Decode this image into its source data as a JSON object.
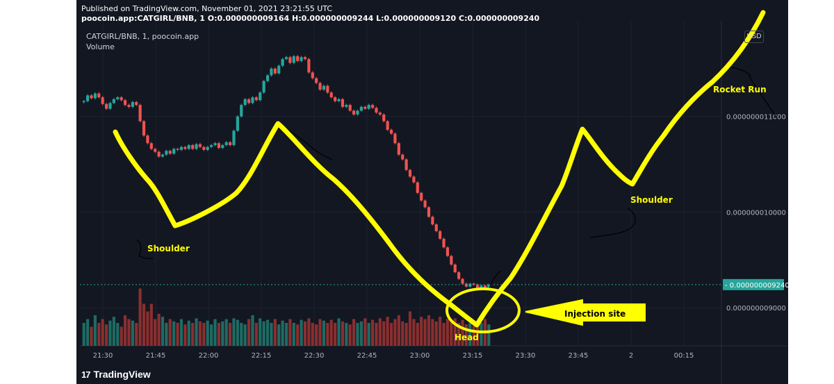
{
  "header": {
    "published": "Published on TradingView.com, November 01, 2021 23:21:55 UTC",
    "ohlc": "poocoin.app:CATGIRL/BNB, 1  O:0.000000009164  H:0.000000009244  L:0.000000009120  C:0.000000009240",
    "symbol": "CATGIRL/BNB, 1, poocoin.app",
    "volume_label": "Volume",
    "currency": "USD"
  },
  "footer": {
    "logo_text": "TradingView",
    "logo_glyph": "17"
  },
  "chart_data": {
    "type": "candlestick",
    "x_ticks": [
      "21:30",
      "21:45",
      "22:00",
      "22:15",
      "22:30",
      "22:45",
      "23:00",
      "23:15",
      "23:30",
      "23:45",
      "2",
      "00:15"
    ],
    "y_ticks": [
      "0.000000011000",
      "0.000000010000",
      "0.000000009000"
    ],
    "last_price": "0.000000009240",
    "ylim": [
      8.6e-09,
      1.2e-08
    ],
    "price_path": [
      1.116e-08,
      1.122e-08,
      1.119e-08,
      1.124e-08,
      1.12e-08,
      1.113e-08,
      1.108e-08,
      1.114e-08,
      1.118e-08,
      1.12e-08,
      1.117e-08,
      1.112e-08,
      1.11e-08,
      1.115e-08,
      1.112e-08,
      1.095e-08,
      1.08e-08,
      1.072e-08,
      1.066e-08,
      1.063e-08,
      1.058e-08,
      1.06e-08,
      1.064e-08,
      1.061e-08,
      1.066e-08,
      1.065e-08,
      1.068e-08,
      1.066e-08,
      1.07e-08,
      1.066e-08,
      1.071e-08,
      1.068e-08,
      1.065e-08,
      1.068e-08,
      1.07e-08,
      1.072e-08,
      1.067e-08,
      1.07e-08,
      1.073e-08,
      1.07e-08,
      1.085e-08,
      1.1e-08,
      1.112e-08,
      1.118e-08,
      1.114e-08,
      1.12e-08,
      1.117e-08,
      1.125e-08,
      1.137e-08,
      1.143e-08,
      1.15e-08,
      1.145e-08,
      1.153e-08,
      1.16e-08,
      1.162e-08,
      1.156e-08,
      1.163e-08,
      1.158e-08,
      1.162e-08,
      1.16e-08,
      1.146e-08,
      1.14e-08,
      1.135e-08,
      1.128e-08,
      1.132e-08,
      1.125e-08,
      1.12e-08,
      1.116e-08,
      1.118e-08,
      1.11e-08,
      1.112e-08,
      1.106e-08,
      1.102e-08,
      1.106e-08,
      1.11e-08,
      1.108e-08,
      1.112e-08,
      1.109e-08,
      1.104e-08,
      1.102e-08,
      1.095e-08,
      1.086e-08,
      1.082e-08,
      1.072e-08,
      1.06e-08,
      1.055e-08,
      1.044e-08,
      1.037e-08,
      1.031e-08,
      1.02e-08,
      1.012e-08,
      1.005e-08,
      9.95e-09,
      9.87e-09,
      9.8e-09,
      9.72e-09,
      9.63e-09,
      9.54e-09,
      9.45e-09,
      9.37e-09,
      9.3e-09,
      9.25e-09,
      9.22e-09,
      9.25e-09,
      9.24e-09,
      9.2e-09,
      9.23e-09,
      9.21e-09,
      9.24e-09
    ],
    "volume": [
      0.3,
      0.35,
      0.25,
      0.4,
      0.3,
      0.35,
      0.28,
      0.33,
      0.38,
      0.3,
      0.25,
      0.4,
      0.35,
      0.33,
      0.3,
      0.75,
      0.55,
      0.45,
      0.55,
      0.35,
      0.42,
      0.38,
      0.3,
      0.35,
      0.32,
      0.3,
      0.35,
      0.28,
      0.33,
      0.3,
      0.36,
      0.32,
      0.3,
      0.33,
      0.28,
      0.35,
      0.3,
      0.32,
      0.35,
      0.3,
      0.36,
      0.34,
      0.3,
      0.28,
      0.35,
      0.4,
      0.3,
      0.36,
      0.32,
      0.34,
      0.3,
      0.35,
      0.28,
      0.33,
      0.3,
      0.35,
      0.3,
      0.28,
      0.34,
      0.32,
      0.36,
      0.3,
      0.28,
      0.35,
      0.33,
      0.3,
      0.34,
      0.3,
      0.36,
      0.32,
      0.3,
      0.28,
      0.35,
      0.3,
      0.32,
      0.36,
      0.3,
      0.34,
      0.3,
      0.36,
      0.32,
      0.38,
      0.3,
      0.35,
      0.4,
      0.32,
      0.3,
      0.45,
      0.35,
      0.3,
      0.38,
      0.35,
      0.4,
      0.35,
      0.32,
      0.38,
      0.3,
      0.35,
      0.32,
      0.36,
      0.3,
      0.34,
      0.28,
      0.3,
      0.26,
      0.32,
      0.3,
      0.35,
      0.28
    ],
    "colors": {
      "up": "#26a69a",
      "down": "#ef5350",
      "vol_up": "#1f6b63",
      "vol_down": "#8a2f2f",
      "bg": "#131722",
      "grid": "#1e222d",
      "last_price": "#26a69a",
      "drawing": "#ffff00"
    }
  },
  "annotations": {
    "shoulder_left": "Shoulder",
    "head": "Head",
    "shoulder_right": "Shoulder",
    "rocket": "Rocket Run",
    "injection": "Injection site"
  }
}
